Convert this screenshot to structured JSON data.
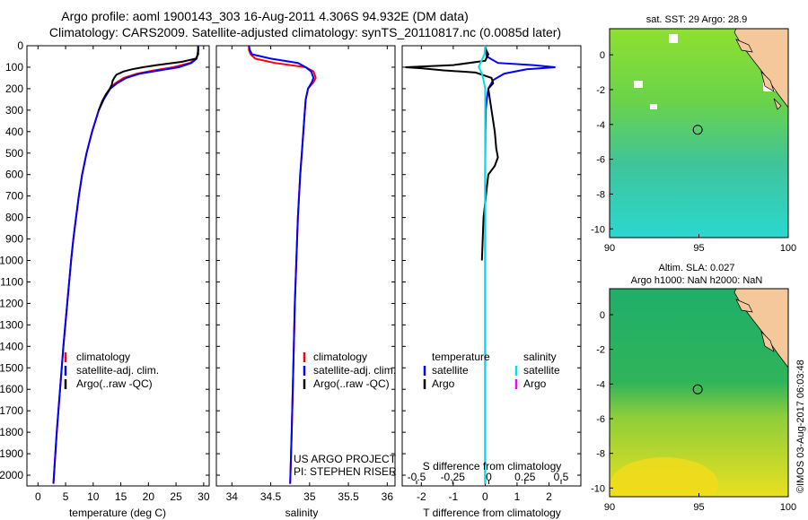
{
  "header": {
    "line1": "Argo profile: aoml 1900143_303 16-Aug-2011 4.306S 94.932E (DM data)",
    "line2": "Climatology: CARS2009. Satellite-adjusted climatology: synTS_20110817.nc (0.0085d later)"
  },
  "credits": {
    "project": "US ARGO PROJECT",
    "pi": "PI: STEPHEN RISER",
    "watermark": "©IMOS 03-Aug-2017 06:03:48"
  },
  "colors": {
    "climatology": "#ff0000",
    "satellite": "#0000ff",
    "argo": "#000000",
    "sal_satellite": "#00e0e0",
    "sal_argo": "#ff00ff"
  },
  "chart_data": [
    {
      "type": "line",
      "id": "temperature",
      "xlabel": "temperature (deg C)",
      "ylabel": "",
      "xlim": [
        -2,
        31
      ],
      "ylim": [
        2050,
        0
      ],
      "xticks": [
        0,
        5,
        10,
        15,
        20,
        25,
        30
      ],
      "yticks": [
        0,
        100,
        200,
        300,
        400,
        500,
        600,
        700,
        800,
        900,
        1000,
        1100,
        1200,
        1300,
        1400,
        1500,
        1600,
        1700,
        1800,
        1900,
        2000
      ],
      "legend": [
        "climatology",
        "satellite-adj. clim.",
        "Argo(..raw -QC)"
      ],
      "series": [
        {
          "name": "climatology",
          "color": "#ff0000",
          "depth": [
            0,
            20,
            40,
            60,
            80,
            100,
            115,
            130,
            150,
            175,
            200,
            250,
            300,
            400,
            500,
            600,
            700,
            800,
            900,
            1000,
            1200,
            1400,
            1600,
            1800,
            2000,
            2040
          ],
          "values": [
            29.0,
            29.0,
            28.9,
            28.7,
            27.5,
            24.5,
            21.0,
            18.0,
            15.5,
            14.0,
            13.0,
            11.9,
            11.0,
            9.8,
            8.8,
            8.0,
            7.4,
            6.9,
            6.4,
            6.0,
            5.3,
            4.6,
            4.0,
            3.4,
            2.9,
            2.8
          ]
        },
        {
          "name": "satellite-adj. clim.",
          "color": "#0000ff",
          "depth": [
            0,
            20,
            40,
            60,
            80,
            100,
            115,
            130,
            150,
            175,
            200,
            250,
            300,
            400,
            500,
            600,
            700,
            800,
            900,
            1000,
            1200,
            1400,
            1600,
            1800,
            2000,
            2040
          ],
          "values": [
            29.0,
            29.0,
            28.9,
            28.7,
            27.8,
            25.5,
            22.0,
            18.5,
            16.0,
            14.3,
            13.1,
            11.9,
            11.0,
            9.8,
            8.8,
            8.0,
            7.4,
            6.9,
            6.4,
            6.0,
            5.3,
            4.6,
            4.0,
            3.4,
            2.9,
            2.8
          ]
        },
        {
          "name": "Argo(..raw -QC)",
          "color": "#000000",
          "depth": [
            5,
            20,
            40,
            60,
            75,
            90,
            100,
            110,
            120,
            135,
            150,
            165,
            180,
            200,
            230,
            260,
            300
          ],
          "values": [
            29.0,
            29.0,
            29.0,
            28.6,
            26.0,
            21.5,
            19.0,
            17.0,
            15.5,
            14.2,
            13.8,
            13.5,
            13.4,
            13.0,
            12.2,
            11.6,
            11.0
          ]
        }
      ]
    },
    {
      "type": "line",
      "id": "salinity",
      "xlabel": "salinity",
      "ylabel": "",
      "xlim": [
        33.8,
        36.1
      ],
      "ylim": [
        2050,
        0
      ],
      "xticks": [
        34,
        34.5,
        35,
        35.5,
        36
      ],
      "legend": [
        "climatology",
        "satellite-adj. clim.",
        "Argo(..raw -QC)"
      ],
      "series": [
        {
          "name": "climatology",
          "color": "#ff0000",
          "depth": [
            0,
            20,
            40,
            60,
            80,
            100,
            120,
            150,
            170,
            200,
            250,
            300,
            400,
            500,
            600,
            800,
            1000,
            1200,
            1500,
            1800,
            2040
          ],
          "values": [
            34.22,
            34.22,
            34.24,
            34.3,
            34.55,
            34.95,
            35.05,
            35.08,
            35.05,
            34.98,
            34.95,
            34.94,
            34.92,
            34.9,
            34.88,
            34.85,
            34.83,
            34.81,
            34.79,
            34.77,
            34.75
          ]
        },
        {
          "name": "satellite-adj. clim.",
          "color": "#0000ff",
          "depth": [
            0,
            20,
            40,
            60,
            80,
            100,
            120,
            150,
            170,
            200,
            250,
            300,
            400,
            500,
            600,
            800,
            1000,
            1200,
            1500,
            1800,
            2040
          ],
          "values": [
            34.22,
            34.23,
            34.26,
            34.5,
            34.85,
            34.95,
            35.02,
            35.05,
            35.03,
            34.98,
            34.95,
            34.94,
            34.92,
            34.9,
            34.88,
            34.85,
            34.83,
            34.81,
            34.79,
            34.77,
            34.75
          ]
        }
      ]
    },
    {
      "type": "line",
      "id": "difference",
      "xlabel": "T difference from climatology",
      "xlabel_top": "S difference from climatology",
      "xlim": [
        -2.6,
        3.0
      ],
      "ylim": [
        2050,
        0
      ],
      "xticks": [
        -2,
        -1,
        0,
        1,
        2
      ],
      "s_ticks": [
        -0.5,
        -0.25,
        0,
        0.25,
        0.5
      ],
      "legend_temperature_title": "temperature",
      "legend_salinity_title": "salinity",
      "legend": [
        "satellite",
        "Argo",
        "satellite",
        "Argo"
      ],
      "series": [
        {
          "name": "temperature satellite",
          "color": "#0000ff",
          "depth": [
            0,
            50,
            80,
            90,
            100,
            110,
            130,
            160,
            200,
            250,
            300,
            400,
            600,
            1000,
            2040
          ],
          "values": [
            0,
            0.05,
            0.4,
            1.5,
            2.2,
            1.3,
            0.6,
            0.25,
            0.1,
            0.05,
            0.02,
            0.01,
            0,
            0,
            0
          ]
        },
        {
          "name": "temperature Argo",
          "color": "#000000",
          "depth": [
            10,
            40,
            70,
            90,
            100,
            105,
            115,
            125,
            150,
            175,
            200,
            300,
            400,
            480,
            520,
            560,
            600,
            800,
            1000
          ],
          "values": [
            0,
            0.1,
            0,
            -1.0,
            -2.5,
            -2.0,
            -1.3,
            -0.3,
            0.2,
            0.25,
            0.1,
            0.2,
            0.3,
            0.35,
            0.4,
            0.3,
            0.1,
            -0.05,
            -0.1
          ]
        },
        {
          "name": "salinity satellite",
          "color": "#00e0e0",
          "depth": [
            0,
            40,
            60,
            80,
            100,
            130,
            160,
            200,
            300,
            500,
            800,
            1200,
            1600,
            2040
          ],
          "values": [
            0,
            -0.02,
            -0.08,
            -0.15,
            -0.2,
            -0.1,
            -0.05,
            0,
            0,
            0,
            0,
            0,
            0,
            0
          ]
        }
      ]
    },
    {
      "type": "heatmap",
      "id": "sst-map",
      "title": "sat. SST: 29 Argo: 28.9",
      "xlim": [
        90,
        100
      ],
      "ylim": [
        -10.5,
        1.5
      ],
      "xticks": [
        90,
        95,
        100
      ],
      "yticks": [
        0,
        -2,
        -4,
        -6,
        -8,
        -10
      ],
      "marker": {
        "lon": 94.932,
        "lat": -4.306
      }
    },
    {
      "type": "heatmap",
      "id": "sla-map",
      "title_line1": "Altim. SLA: 0.027",
      "title_line2": "Argo h1000: NaN h2000: NaN",
      "xlim": [
        90,
        100
      ],
      "ylim": [
        -10.5,
        1.5
      ],
      "xticks": [
        90,
        95,
        100
      ],
      "yticks": [
        0,
        -2,
        -4,
        -6,
        -8,
        -10
      ],
      "marker": {
        "lon": 94.932,
        "lat": -4.306
      }
    }
  ]
}
